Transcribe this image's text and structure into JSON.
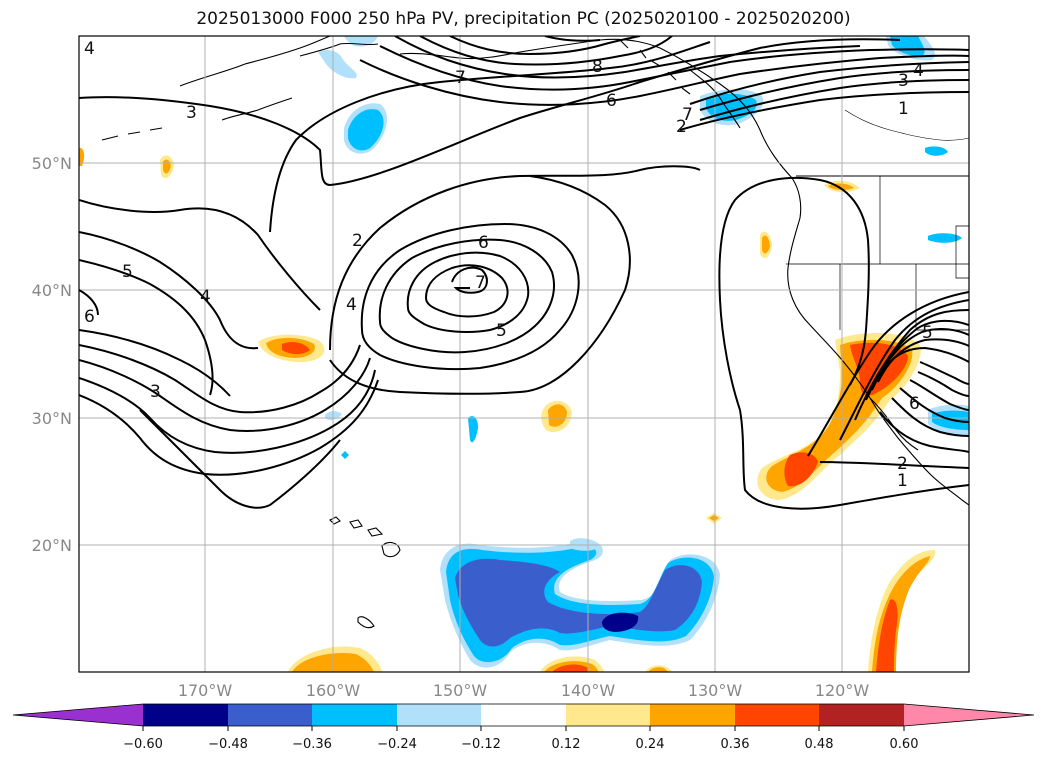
{
  "title": "2025013000 F000 250 hPa PV, precipitation PC (2025020100 - 2025020200)",
  "map": {
    "lat_ticks": [
      "50°N",
      "40°N",
      "30°N",
      "20°N"
    ],
    "lon_ticks": [
      "170°W",
      "160°W",
      "150°W",
      "140°W",
      "130°W",
      "120°W"
    ],
    "grid": true,
    "contour_labels": [
      "4",
      "3",
      "7",
      "8",
      "6",
      "3",
      "4",
      "1",
      "7",
      "2",
      "2",
      "6",
      "5",
      "4",
      "6",
      "7",
      "4",
      "5",
      "3",
      "5",
      "6",
      "2",
      "1"
    ]
  },
  "colorbar": {
    "ticks": [
      "−0.60",
      "−0.48",
      "−0.36",
      "−0.24",
      "−0.12",
      "0.12",
      "0.24",
      "0.36",
      "0.48",
      "0.60"
    ],
    "colors": [
      "#9b30d0",
      "#00008b",
      "#3a5fcd",
      "#00bfff",
      "#b0e0fa",
      "#ffffff",
      "#ffe98c",
      "#ffa500",
      "#ff4500",
      "#b22222",
      "#ff88aa"
    ]
  }
}
